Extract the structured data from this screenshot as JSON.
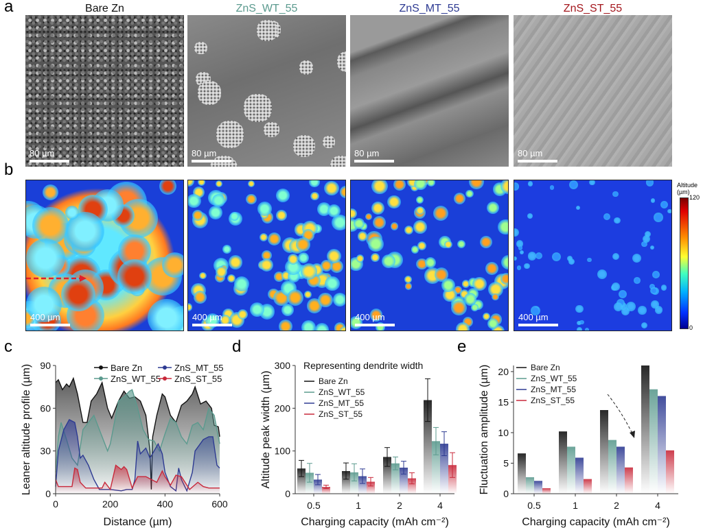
{
  "panel_labels": [
    "a",
    "b",
    "c",
    "d",
    "e"
  ],
  "samples": [
    {
      "name": "Bare Zn",
      "color": "#111111"
    },
    {
      "name": "ZnS_WT_55",
      "color": "#5b9a8e"
    },
    {
      "name": "ZnS_MT_55",
      "color": "#2d3a92"
    },
    {
      "name": "ZnS_ST_55",
      "color": "#a3151b"
    }
  ],
  "sem_scale_bar": "80 µm",
  "map_scale_bar": "400 µm",
  "colorbar": {
    "title": "Altitude (µm)",
    "max": "120",
    "min": "0"
  },
  "chart_data": [
    {
      "type": "area",
      "panel": "c",
      "xlabel": "Distance (µm)",
      "ylabel": "Leaner altitude profile (µm)",
      "xlim": [
        0,
        600
      ],
      "ylim": [
        0,
        90
      ],
      "xticks": [
        "0",
        "200",
        "400",
        "600"
      ],
      "yticks": [
        "0",
        "30",
        "60",
        "90"
      ],
      "legend": "top",
      "series": [
        {
          "name": "Bare Zn",
          "color": "#111111",
          "points": [
            [
              0,
              78
            ],
            [
              10,
              80
            ],
            [
              25,
              73
            ],
            [
              40,
              77
            ],
            [
              50,
              75
            ],
            [
              65,
              81
            ],
            [
              80,
              70
            ],
            [
              100,
              50
            ],
            [
              115,
              50
            ],
            [
              130,
              65
            ],
            [
              150,
              70
            ],
            [
              170,
              78
            ],
            [
              190,
              60
            ],
            [
              205,
              53
            ],
            [
              230,
              65
            ],
            [
              250,
              72
            ],
            [
              270,
              67
            ],
            [
              290,
              68
            ],
            [
              310,
              65
            ],
            [
              330,
              55
            ],
            [
              345,
              30
            ],
            [
              350,
              3
            ],
            [
              355,
              40
            ],
            [
              370,
              55
            ],
            [
              390,
              70
            ],
            [
              400,
              68
            ],
            [
              420,
              55
            ],
            [
              440,
              50
            ],
            [
              460,
              62
            ],
            [
              480,
              65
            ],
            [
              500,
              70
            ],
            [
              510,
              75
            ],
            [
              530,
              63
            ],
            [
              550,
              65
            ],
            [
              570,
              60
            ],
            [
              580,
              48
            ],
            [
              595,
              47
            ],
            [
              600,
              40
            ]
          ]
        },
        {
          "name": "ZnS_WT_55",
          "color": "#5b9a8e",
          "points": [
            [
              0,
              15
            ],
            [
              10,
              40
            ],
            [
              20,
              50
            ],
            [
              40,
              38
            ],
            [
              60,
              25
            ],
            [
              80,
              20
            ],
            [
              100,
              45
            ],
            [
              120,
              50
            ],
            [
              140,
              55
            ],
            [
              160,
              45
            ],
            [
              190,
              30
            ],
            [
              200,
              35
            ],
            [
              230,
              65
            ],
            [
              250,
              68
            ],
            [
              270,
              72
            ],
            [
              280,
              73
            ],
            [
              300,
              60
            ],
            [
              320,
              45
            ],
            [
              340,
              38
            ],
            [
              360,
              37
            ],
            [
              380,
              30
            ],
            [
              400,
              42
            ],
            [
              420,
              53
            ],
            [
              440,
              50
            ],
            [
              460,
              40
            ],
            [
              480,
              35
            ],
            [
              500,
              48
            ],
            [
              520,
              50
            ],
            [
              540,
              45
            ],
            [
              560,
              60
            ],
            [
              580,
              55
            ],
            [
              600,
              35
            ]
          ]
        },
        {
          "name": "ZnS_MT_55",
          "color": "#2d3a92",
          "points": [
            [
              0,
              5
            ],
            [
              10,
              30
            ],
            [
              30,
              45
            ],
            [
              50,
              52
            ],
            [
              70,
              50
            ],
            [
              80,
              40
            ],
            [
              90,
              25
            ],
            [
              100,
              27
            ],
            [
              120,
              20
            ],
            [
              140,
              10
            ],
            [
              160,
              3
            ],
            [
              200,
              3
            ],
            [
              240,
              2
            ],
            [
              260,
              3
            ],
            [
              280,
              3
            ],
            [
              290,
              10
            ],
            [
              300,
              37
            ],
            [
              310,
              28
            ],
            [
              330,
              32
            ],
            [
              345,
              25
            ],
            [
              360,
              30
            ],
            [
              375,
              35
            ],
            [
              390,
              28
            ],
            [
              400,
              15
            ],
            [
              420,
              5
            ],
            [
              440,
              2
            ],
            [
              450,
              18
            ],
            [
              460,
              10
            ],
            [
              480,
              2
            ],
            [
              500,
              15
            ],
            [
              510,
              30
            ],
            [
              540,
              38
            ],
            [
              560,
              40
            ],
            [
              575,
              40
            ],
            [
              590,
              20
            ],
            [
              600,
              18
            ]
          ]
        },
        {
          "name": "ZnS_ST_55",
          "color": "#c8283a",
          "points": [
            [
              0,
              10
            ],
            [
              10,
              5
            ],
            [
              60,
              5
            ],
            [
              70,
              18
            ],
            [
              80,
              17
            ],
            [
              90,
              8
            ],
            [
              110,
              4
            ],
            [
              170,
              4
            ],
            [
              180,
              8
            ],
            [
              200,
              3
            ],
            [
              220,
              20
            ],
            [
              240,
              17
            ],
            [
              250,
              19
            ],
            [
              260,
              17
            ],
            [
              280,
              4
            ],
            [
              300,
              12
            ],
            [
              330,
              12
            ],
            [
              350,
              10
            ],
            [
              370,
              8
            ],
            [
              390,
              16
            ],
            [
              400,
              12
            ],
            [
              420,
              6
            ],
            [
              440,
              13
            ],
            [
              460,
              12
            ],
            [
              470,
              9
            ],
            [
              490,
              3
            ],
            [
              520,
              8
            ],
            [
              540,
              5
            ],
            [
              560,
              4
            ],
            [
              600,
              4
            ]
          ]
        }
      ]
    },
    {
      "type": "bar",
      "panel": "d",
      "title": "Representing dendrite width",
      "xlabel": "Charging capacity (mAh cm⁻²)",
      "ylabel": "Altitude peak width (µm)",
      "ylim": [
        0,
        300
      ],
      "yticks": [
        "0",
        "100",
        "200",
        "300"
      ],
      "categories": [
        "0.5",
        "1",
        "2",
        "4"
      ],
      "legend": "top-left",
      "series": [
        {
          "name": "Bare Zn",
          "color": "#111111",
          "values": [
            59,
            53,
            86,
            219
          ],
          "errors": [
            19,
            19,
            22,
            50
          ]
        },
        {
          "name": "ZnS_WT_55",
          "color": "#5b9a8e",
          "values": [
            49,
            50,
            71,
            123
          ],
          "errors": [
            22,
            20,
            15,
            32
          ]
        },
        {
          "name": "ZnS_MT_55",
          "color": "#2d3a92",
          "values": [
            33,
            41,
            61,
            117
          ],
          "errors": [
            12,
            17,
            15,
            28
          ]
        },
        {
          "name": "ZnS_ST_55",
          "color": "#c8283a",
          "values": [
            16,
            28,
            36,
            67
          ],
          "errors": [
            4,
            10,
            13,
            29
          ]
        }
      ]
    },
    {
      "type": "bar",
      "panel": "e",
      "xlabel": "Charging capacity (mAh cm⁻²)",
      "ylabel": "Fluctuation amplitude (µm)",
      "ylim": [
        0,
        21
      ],
      "yticks": [
        "0",
        "5",
        "10",
        "15",
        "20"
      ],
      "categories": [
        "0.5",
        "1",
        "2",
        "4"
      ],
      "legend": "top-left",
      "series": [
        {
          "name": "Bare Zn",
          "color": "#111111",
          "values": [
            6.6,
            10.2,
            13.7,
            21.0
          ]
        },
        {
          "name": "ZnS_WT_55",
          "color": "#5b9a8e",
          "values": [
            2.7,
            7.7,
            8.8,
            17.1
          ]
        },
        {
          "name": "ZnS_MT_55",
          "color": "#2d3a92",
          "values": [
            2.1,
            5.9,
            7.7,
            16.0
          ]
        },
        {
          "name": "ZnS_ST_55",
          "color": "#c8283a",
          "values": [
            0.9,
            2.4,
            4.3,
            7.1
          ]
        }
      ]
    }
  ]
}
